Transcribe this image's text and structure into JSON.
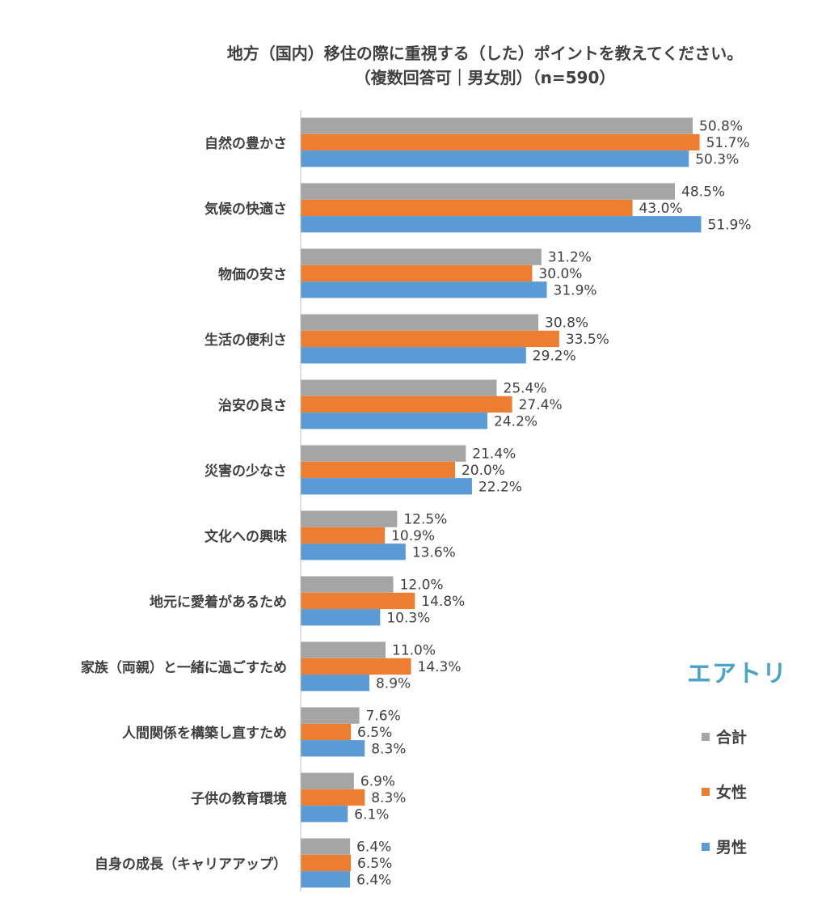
{
  "chart_data": {
    "type": "bar",
    "orientation": "horizontal",
    "title": "地方（国内）移住の際に重視する（した）ポイントを教えてください。",
    "subtitle": "（複数回答可｜男女別）（n=590）",
    "categories": [
      "自然の豊かさ",
      "気候の快適さ",
      "物価の安さ",
      "生活の便利さ",
      "治安の良さ",
      "災害の少なさ",
      "文化への興味",
      "地元に愛着があるため",
      "家族（両親）と一緒に過ごすため",
      "人間関係を構築し直すため",
      "子供の教育環境",
      "自身の成長（キャリアアップ）"
    ],
    "series": [
      {
        "name": "合計",
        "color": "#a5a5a5",
        "values": [
          50.8,
          48.5,
          31.2,
          30.8,
          25.4,
          21.4,
          12.5,
          12.0,
          11.0,
          7.6,
          6.9,
          6.4
        ],
        "labels": [
          "50.8%",
          "48.5%",
          "31.2%",
          "30.8%",
          "25.4%",
          "21.4%",
          "12.5%",
          "12.0%",
          "11.0%",
          "7.6%",
          "6.9%",
          "6.4%"
        ]
      },
      {
        "name": "女性",
        "color": "#ed7d31",
        "values": [
          51.7,
          43.0,
          30.0,
          33.5,
          27.4,
          20.0,
          10.9,
          14.8,
          14.3,
          6.5,
          8.3,
          6.5
        ],
        "labels": [
          "51.7%",
          "43.0%",
          "30.0%",
          "33.5%",
          "27.4%",
          "20.0%",
          "10.9%",
          "14.8%",
          "14.3%",
          "6.5%",
          "8.3%",
          "6.5%"
        ]
      },
      {
        "name": "男性",
        "color": "#5b9bd5",
        "values": [
          50.3,
          51.9,
          31.9,
          29.2,
          24.2,
          22.2,
          13.6,
          10.3,
          8.9,
          8.3,
          6.1,
          6.4
        ],
        "labels": [
          "50.3%",
          "51.9%",
          "31.9%",
          "29.2%",
          "24.2%",
          "22.2%",
          "13.6%",
          "10.3%",
          "8.9%",
          "8.3%",
          "6.1%",
          "6.4%"
        ]
      }
    ],
    "xlim": [
      0,
      60
    ],
    "grid": false,
    "legend_position": "right"
  },
  "brand": "エアトリ"
}
